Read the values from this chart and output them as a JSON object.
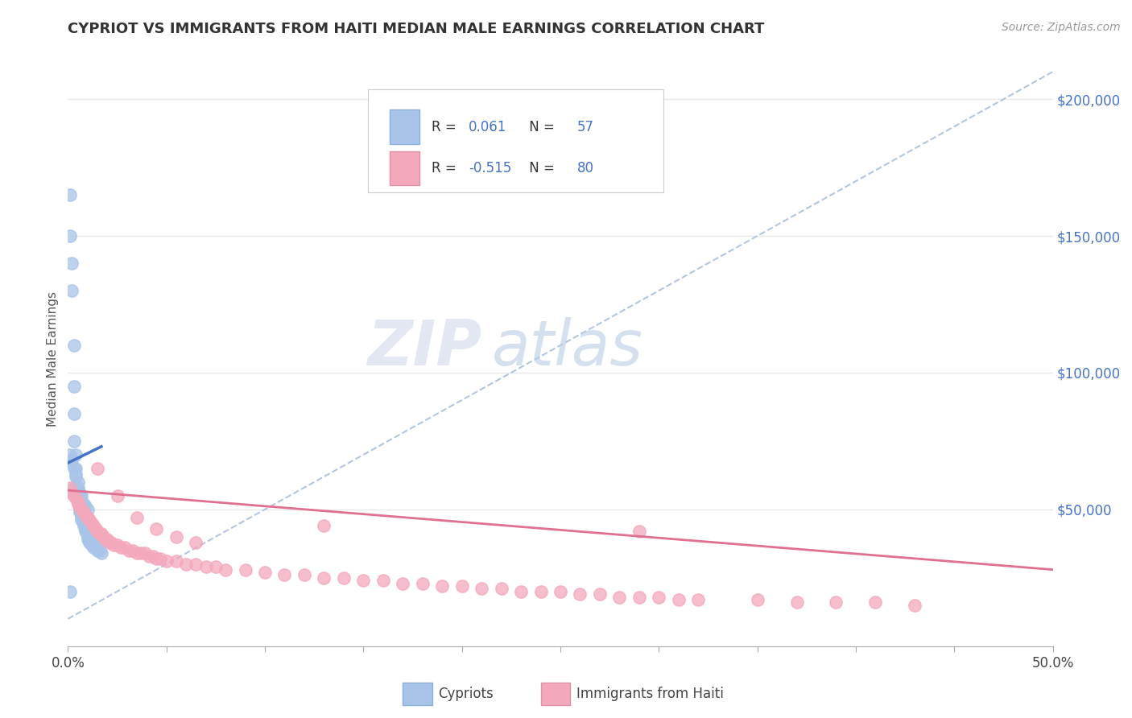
{
  "title": "CYPRIOT VS IMMIGRANTS FROM HAITI MEDIAN MALE EARNINGS CORRELATION CHART",
  "source": "Source: ZipAtlas.com",
  "ylabel": "Median Male Earnings",
  "right_yticks": [
    0,
    50000,
    100000,
    150000,
    200000
  ],
  "right_yticklabels": [
    "",
    "$50,000",
    "$100,000",
    "$150,000",
    "$200,000"
  ],
  "color_blue": "#a8c4e8",
  "color_pink": "#f4a8bc",
  "color_blue_dark": "#4472c4",
  "color_pink_dark": "#e07090",
  "color_dashed": "#a0b8d8",
  "watermark_zip": "ZIP",
  "watermark_atlas": "atlas",
  "blue_scatter_x": [
    0.001,
    0.001,
    0.002,
    0.002,
    0.003,
    0.003,
    0.003,
    0.003,
    0.004,
    0.004,
    0.004,
    0.005,
    0.005,
    0.005,
    0.005,
    0.005,
    0.006,
    0.006,
    0.006,
    0.006,
    0.007,
    0.007,
    0.007,
    0.008,
    0.008,
    0.009,
    0.009,
    0.01,
    0.01,
    0.01,
    0.011,
    0.011,
    0.012,
    0.012,
    0.013,
    0.013,
    0.014,
    0.015,
    0.016,
    0.017,
    0.003,
    0.004,
    0.005,
    0.006,
    0.007,
    0.008,
    0.009,
    0.01,
    0.005,
    0.006,
    0.007,
    0.004,
    0.003,
    0.002,
    0.001,
    0.001,
    0.001
  ],
  "blue_scatter_y": [
    150000,
    165000,
    140000,
    130000,
    110000,
    95000,
    85000,
    75000,
    70000,
    65000,
    62000,
    60000,
    58000,
    56000,
    54000,
    53000,
    52000,
    51000,
    50000,
    49000,
    48000,
    47000,
    46000,
    45000,
    44000,
    43000,
    42000,
    41000,
    40000,
    39000,
    39000,
    38000,
    38000,
    37000,
    37000,
    36000,
    36000,
    35000,
    35000,
    34000,
    58000,
    56000,
    55000,
    54000,
    53000,
    52000,
    51000,
    50000,
    57000,
    56000,
    55000,
    63000,
    65000,
    67000,
    68000,
    70000,
    20000
  ],
  "pink_scatter_x": [
    0.001,
    0.002,
    0.003,
    0.004,
    0.005,
    0.005,
    0.006,
    0.007,
    0.008,
    0.009,
    0.01,
    0.011,
    0.012,
    0.013,
    0.014,
    0.015,
    0.016,
    0.017,
    0.018,
    0.019,
    0.02,
    0.021,
    0.022,
    0.023,
    0.025,
    0.027,
    0.029,
    0.031,
    0.033,
    0.035,
    0.037,
    0.039,
    0.041,
    0.043,
    0.045,
    0.047,
    0.05,
    0.055,
    0.06,
    0.065,
    0.07,
    0.075,
    0.08,
    0.09,
    0.1,
    0.11,
    0.12,
    0.13,
    0.14,
    0.15,
    0.16,
    0.17,
    0.18,
    0.19,
    0.2,
    0.21,
    0.22,
    0.23,
    0.24,
    0.25,
    0.26,
    0.27,
    0.28,
    0.29,
    0.3,
    0.31,
    0.32,
    0.35,
    0.37,
    0.39,
    0.41,
    0.43,
    0.015,
    0.025,
    0.035,
    0.045,
    0.055,
    0.065,
    0.13,
    0.29
  ],
  "pink_scatter_y": [
    58000,
    56000,
    55000,
    54000,
    53000,
    52000,
    51000,
    50000,
    49000,
    48000,
    47000,
    46000,
    45000,
    44000,
    43000,
    42000,
    41000,
    41000,
    40000,
    39000,
    39000,
    38000,
    38000,
    37000,
    37000,
    36000,
    36000,
    35000,
    35000,
    34000,
    34000,
    34000,
    33000,
    33000,
    32000,
    32000,
    31000,
    31000,
    30000,
    30000,
    29000,
    29000,
    28000,
    28000,
    27000,
    26000,
    26000,
    25000,
    25000,
    24000,
    24000,
    23000,
    23000,
    22000,
    22000,
    21000,
    21000,
    20000,
    20000,
    20000,
    19000,
    19000,
    18000,
    18000,
    18000,
    17000,
    17000,
    17000,
    16000,
    16000,
    16000,
    15000,
    65000,
    55000,
    47000,
    43000,
    40000,
    38000,
    44000,
    42000
  ],
  "xlim": [
    0.0,
    0.5
  ],
  "ylim": [
    0,
    210000
  ],
  "blue_trend_x": [
    0.0,
    0.017
  ],
  "blue_trend_y": [
    67000,
    73000
  ],
  "pink_trend_x": [
    0.0,
    0.5
  ],
  "pink_trend_y": [
    57000,
    28000
  ],
  "dashed_trend_x": [
    0.0,
    0.5
  ],
  "dashed_trend_y": [
    10000,
    210000
  ],
  "bg_color": "#ffffff",
  "grid_color": "#e8e8e8",
  "xtick_positions": [
    0.0,
    0.05,
    0.1,
    0.15,
    0.2,
    0.25,
    0.3,
    0.35,
    0.4,
    0.45,
    0.5
  ]
}
